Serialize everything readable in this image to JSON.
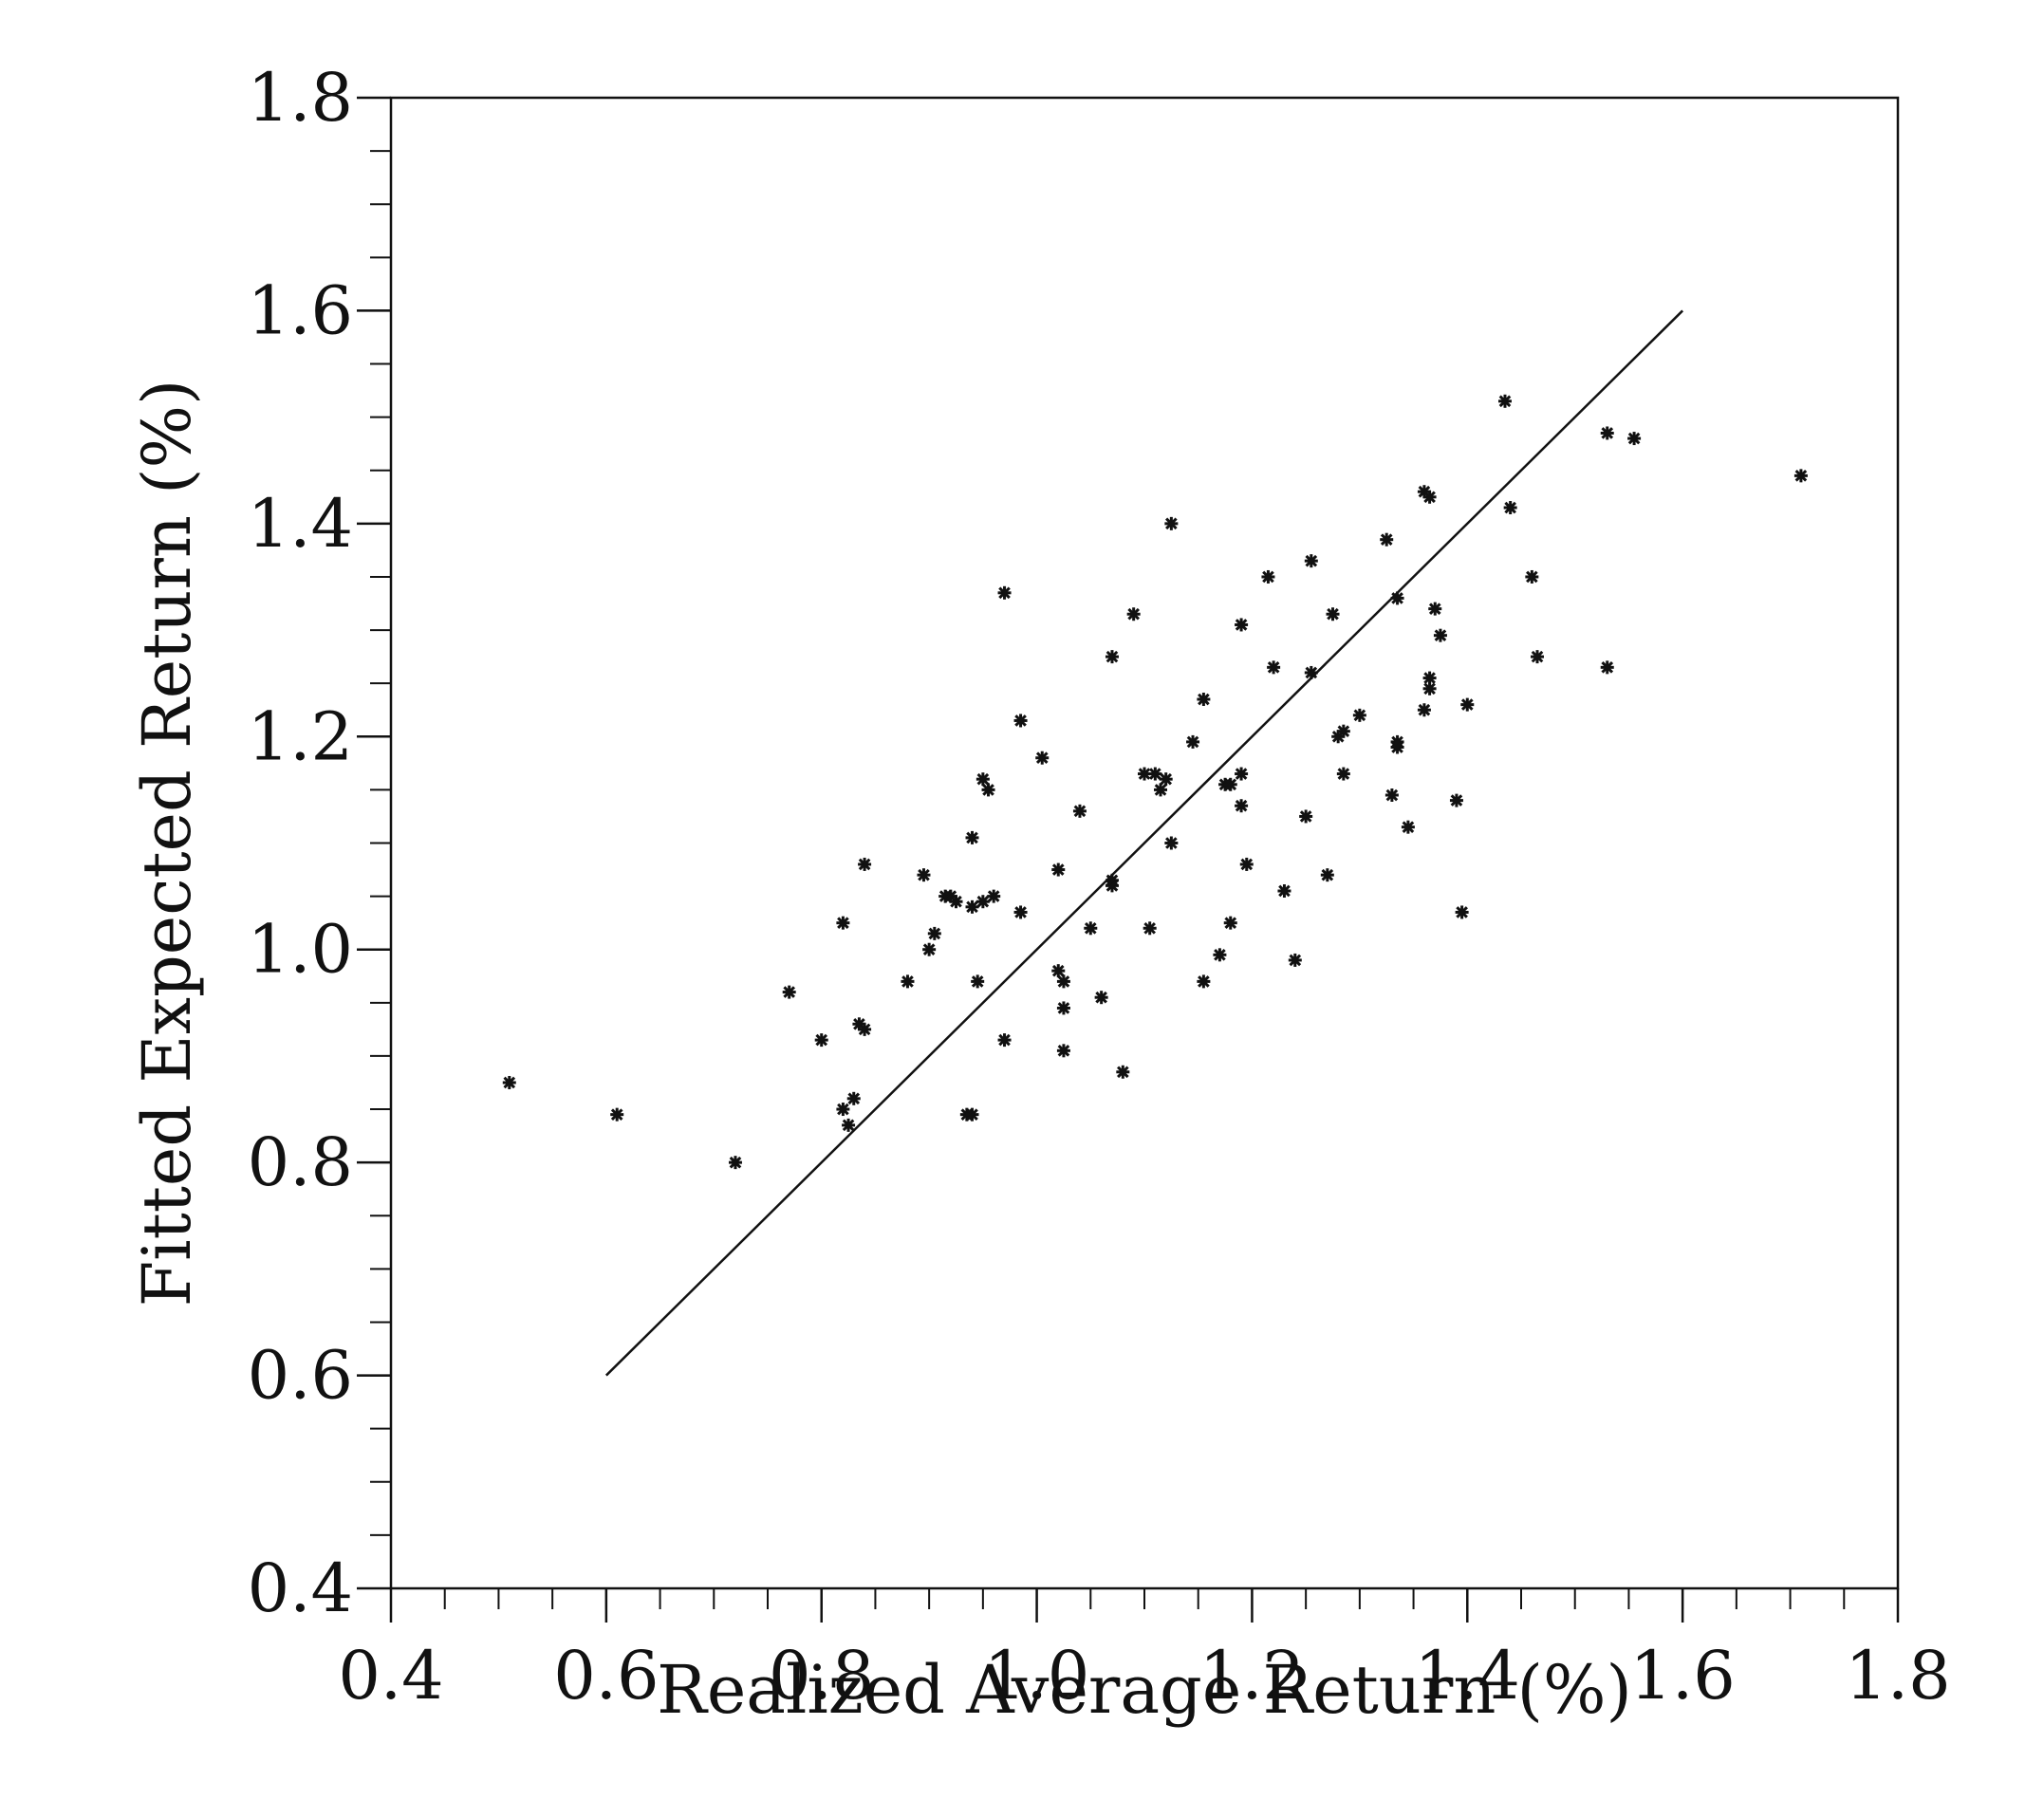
{
  "chart_data": {
    "type": "scatter",
    "title": "",
    "xlabel": "Realized Average Return (%)",
    "ylabel": "Fitted Expected Return (%)",
    "xlim": [
      0.4,
      1.8
    ],
    "ylim": [
      0.4,
      1.8
    ],
    "xticks": [
      "0.4",
      "0.6",
      "0.8",
      "1.0",
      "1.2",
      "1.4",
      "1.6",
      "1.8"
    ],
    "yticks": [
      "0.4",
      "0.6",
      "0.8",
      "1.0",
      "1.2",
      "1.4",
      "1.6",
      "1.8"
    ],
    "minor_tick_step": 0.05,
    "grid": false,
    "marker": "asterisk",
    "color": "#111111",
    "line": {
      "x": [
        0.6,
        1.6
      ],
      "y": [
        0.6,
        1.6
      ]
    },
    "points": [
      [
        0.51,
        0.875
      ],
      [
        0.61,
        0.845
      ],
      [
        0.72,
        0.8
      ],
      [
        0.77,
        0.96
      ],
      [
        0.8,
        0.915
      ],
      [
        0.82,
        0.85
      ],
      [
        0.82,
        1.025
      ],
      [
        0.825,
        0.835
      ],
      [
        0.83,
        0.86
      ],
      [
        0.835,
        0.93
      ],
      [
        0.84,
        1.08
      ],
      [
        0.84,
        0.925
      ],
      [
        0.88,
        0.97
      ],
      [
        0.895,
        1.07
      ],
      [
        0.9,
        1.0
      ],
      [
        0.905,
        1.015
      ],
      [
        0.915,
        1.05
      ],
      [
        0.92,
        1.05
      ],
      [
        0.925,
        1.045
      ],
      [
        0.935,
        0.845
      ],
      [
        0.94,
        0.845
      ],
      [
        0.94,
        1.105
      ],
      [
        0.94,
        1.04
      ],
      [
        0.945,
        0.97
      ],
      [
        0.95,
        1.045
      ],
      [
        0.95,
        1.16
      ],
      [
        0.955,
        1.15
      ],
      [
        0.96,
        1.05
      ],
      [
        0.97,
        1.335
      ],
      [
        0.97,
        0.915
      ],
      [
        0.985,
        1.035
      ],
      [
        0.985,
        1.215
      ],
      [
        1.005,
        1.18
      ],
      [
        1.02,
        1.075
      ],
      [
        1.02,
        0.98
      ],
      [
        1.025,
        0.905
      ],
      [
        1.025,
        0.945
      ],
      [
        1.025,
        0.97
      ],
      [
        1.04,
        1.13
      ],
      [
        1.05,
        1.02
      ],
      [
        1.06,
        0.955
      ],
      [
        1.07,
        1.065
      ],
      [
        1.07,
        1.06
      ],
      [
        1.07,
        1.275
      ],
      [
        1.08,
        0.885
      ],
      [
        1.09,
        1.315
      ],
      [
        1.1,
        1.165
      ],
      [
        1.105,
        1.02
      ],
      [
        1.11,
        1.165
      ],
      [
        1.115,
        1.15
      ],
      [
        1.12,
        1.16
      ],
      [
        1.125,
        1.1
      ],
      [
        1.125,
        1.4
      ],
      [
        1.145,
        1.195
      ],
      [
        1.155,
        0.97
      ],
      [
        1.155,
        1.235
      ],
      [
        1.17,
        0.995
      ],
      [
        1.175,
        1.155
      ],
      [
        1.18,
        1.025
      ],
      [
        1.18,
        1.155
      ],
      [
        1.19,
        1.305
      ],
      [
        1.19,
        1.165
      ],
      [
        1.19,
        1.135
      ],
      [
        1.195,
        1.08
      ],
      [
        1.215,
        1.35
      ],
      [
        1.22,
        1.265
      ],
      [
        1.23,
        1.055
      ],
      [
        1.24,
        0.99
      ],
      [
        1.25,
        1.125
      ],
      [
        1.255,
        1.26
      ],
      [
        1.255,
        1.365
      ],
      [
        1.27,
        1.07
      ],
      [
        1.275,
        1.315
      ],
      [
        1.28,
        1.2
      ],
      [
        1.285,
        1.165
      ],
      [
        1.285,
        1.205
      ],
      [
        1.3,
        1.22
      ],
      [
        1.325,
        1.385
      ],
      [
        1.33,
        1.145
      ],
      [
        1.335,
        1.19
      ],
      [
        1.335,
        1.195
      ],
      [
        1.335,
        1.33
      ],
      [
        1.345,
        1.115
      ],
      [
        1.36,
        1.43
      ],
      [
        1.36,
        1.225
      ],
      [
        1.365,
        1.245
      ],
      [
        1.365,
        1.255
      ],
      [
        1.365,
        1.425
      ],
      [
        1.37,
        1.32
      ],
      [
        1.375,
        1.295
      ],
      [
        1.39,
        1.14
      ],
      [
        1.395,
        1.035
      ],
      [
        1.4,
        1.23
      ],
      [
        1.435,
        1.515
      ],
      [
        1.44,
        1.415
      ],
      [
        1.46,
        1.35
      ],
      [
        1.465,
        1.275
      ],
      [
        1.53,
        1.485
      ],
      [
        1.53,
        1.265
      ],
      [
        1.555,
        1.48
      ],
      [
        1.71,
        1.445
      ]
    ]
  }
}
